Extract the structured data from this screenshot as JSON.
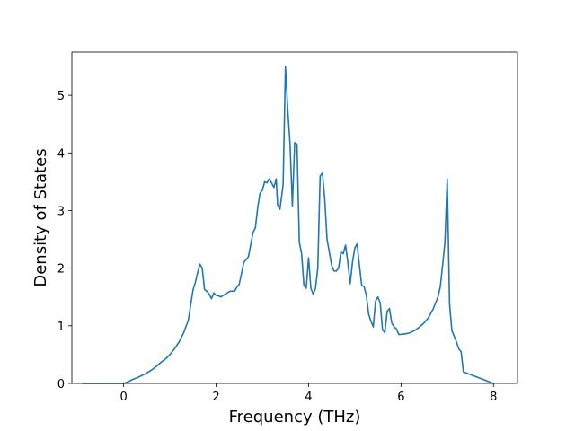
{
  "chart_data": {
    "type": "line",
    "title": "",
    "xlabel": "Frequency (THz)",
    "ylabel": "Density of States",
    "xlim": [
      -1.12,
      8.52
    ],
    "ylim": [
      0,
      5.75
    ],
    "xticks": [
      0,
      2,
      4,
      6,
      8
    ],
    "yticks": [
      0,
      1,
      2,
      3,
      4,
      5
    ],
    "grid": false,
    "legend": "none",
    "series": [
      {
        "color": "#1f77b4",
        "x": [
          -0.9,
          0.0,
          0.1,
          0.2,
          0.3,
          0.4,
          0.5,
          0.6,
          0.7,
          0.8,
          0.9,
          1.0,
          1.1,
          1.2,
          1.3,
          1.4,
          1.5,
          1.55,
          1.6,
          1.65,
          1.7,
          1.75,
          1.8,
          1.85,
          1.9,
          1.95,
          2.0,
          2.05,
          2.1,
          2.2,
          2.3,
          2.4,
          2.45,
          2.5,
          2.6,
          2.65,
          2.7,
          2.8,
          2.85,
          2.9,
          2.95,
          3.0,
          3.05,
          3.1,
          3.15,
          3.2,
          3.25,
          3.3,
          3.33,
          3.38,
          3.45,
          3.5,
          3.55,
          3.6,
          3.65,
          3.7,
          3.75,
          3.8,
          3.85,
          3.9,
          3.95,
          4.0,
          4.05,
          4.1,
          4.15,
          4.2,
          4.25,
          4.3,
          4.35,
          4.4,
          4.5,
          4.55,
          4.6,
          4.65,
          4.7,
          4.75,
          4.8,
          4.85,
          4.9,
          4.95,
          5.0,
          5.05,
          5.1,
          5.15,
          5.2,
          5.25,
          5.3,
          5.35,
          5.4,
          5.45,
          5.5,
          5.55,
          5.6,
          5.65,
          5.7,
          5.75,
          5.8,
          5.85,
          5.9,
          5.95,
          6.0,
          6.1,
          6.2,
          6.3,
          6.4,
          6.5,
          6.6,
          6.7,
          6.8,
          6.85,
          6.9,
          6.95,
          7.0,
          7.05,
          7.1,
          7.2,
          7.25,
          7.3,
          7.35,
          8.0
        ],
        "y": [
          0,
          0,
          0.03,
          0.07,
          0.1,
          0.14,
          0.18,
          0.23,
          0.29,
          0.36,
          0.42,
          0.5,
          0.6,
          0.72,
          0.88,
          1.1,
          1.62,
          1.75,
          1.92,
          2.07,
          2.0,
          1.63,
          1.6,
          1.55,
          1.47,
          1.57,
          1.53,
          1.52,
          1.5,
          1.55,
          1.6,
          1.6,
          1.67,
          1.72,
          2.1,
          2.15,
          2.2,
          2.62,
          2.7,
          3.05,
          3.3,
          3.35,
          3.5,
          3.48,
          3.55,
          3.48,
          3.4,
          3.55,
          3.1,
          3.02,
          3.45,
          5.5,
          4.75,
          4.15,
          3.08,
          4.18,
          4.15,
          2.45,
          2.25,
          1.7,
          1.65,
          2.18,
          1.65,
          1.55,
          1.65,
          2.0,
          3.6,
          3.65,
          3.2,
          2.5,
          2.05,
          1.95,
          1.95,
          2.0,
          2.28,
          2.25,
          2.4,
          2.1,
          1.73,
          2.1,
          2.35,
          2.42,
          2.05,
          1.7,
          1.68,
          1.53,
          1.2,
          1.08,
          0.98,
          1.43,
          1.5,
          1.4,
          0.93,
          0.88,
          1.25,
          1.3,
          1.05,
          0.98,
          0.95,
          0.85,
          0.85,
          0.86,
          0.88,
          0.92,
          0.98,
          1.05,
          1.15,
          1.3,
          1.5,
          1.68,
          2.05,
          2.45,
          3.55,
          1.38,
          0.92,
          0.72,
          0.6,
          0.55,
          0.2,
          0
        ]
      }
    ]
  }
}
